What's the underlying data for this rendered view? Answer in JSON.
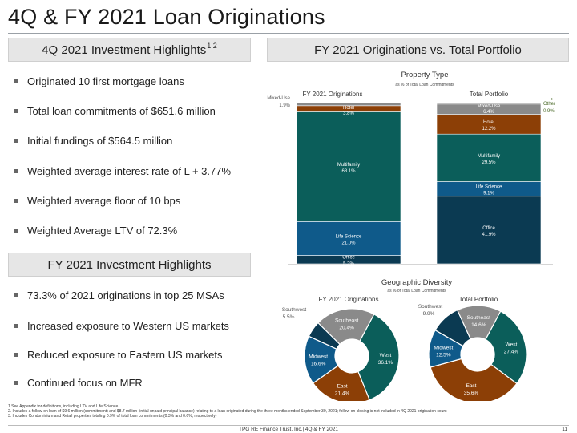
{
  "title": "4Q & FY 2021 Loan Originations",
  "left": {
    "hdr1": "4Q 2021 Investment Highlights",
    "hdr1_sup": "1,2",
    "bullets1": [
      "Originated 10 first mortgage loans",
      "Total loan commitments of $651.6 million",
      "Initial fundings of $564.5 million",
      "Weighted average interest rate of L + 3.77%",
      "Weighted average floor of 10 bps",
      "Weighted Average LTV of 72.3%"
    ],
    "hdr2": "FY 2021 Investment Highlights",
    "bullets2": [
      "73.3% of 2021 originations in top 25 MSAs",
      "Increased exposure to Western US markets",
      "Reduced exposure to Eastern US markets",
      "Continued focus on MFR"
    ]
  },
  "right": {
    "hdr": "FY 2021 Originations vs. Total Portfolio"
  },
  "colors": {
    "office": "#0b3a52",
    "life_science": "#0f5a8a",
    "multifamily": "#0b5e5a",
    "hotel": "#8c3f06",
    "mixed_use": "#8a8a8a",
    "west": "#0b5e5a",
    "east": "#8c3f06",
    "midwest": "#0f5a8a",
    "southwest": "#0b3a52",
    "southeast": "#8a8a8a",
    "other_label": "#4b6b2a"
  },
  "chart_data": [
    {
      "type": "bar",
      "title": "Property Type",
      "subtitle": "as % of Total Loan Commitments",
      "stacked": true,
      "normalized": true,
      "categories": [
        "FY 2021 Originations",
        "Total Portfolio"
      ],
      "series": [
        {
          "name": "Office",
          "values": [
            5.2,
            41.9
          ],
          "labels": [
            "5.2%",
            "41.9%"
          ]
        },
        {
          "name": "Life Science",
          "values": [
            21.0,
            9.1
          ],
          "labels": [
            "21.0%",
            "9.1%"
          ]
        },
        {
          "name": "Multifamily",
          "values": [
            68.1,
            29.5
          ],
          "labels": [
            "68.1%",
            "29.5%"
          ]
        },
        {
          "name": "Hotel",
          "values": [
            3.8,
            12.2
          ],
          "labels": [
            "3.8%",
            "12.2%"
          ]
        },
        {
          "name": "Mixed-Use",
          "values": [
            1.9,
            6.4
          ],
          "labels": [
            "1.9%",
            "6.4%"
          ]
        },
        {
          "name": "Other",
          "values": [
            0,
            0.9
          ],
          "labels": [
            "",
            "0.9%"
          ],
          "footnote": "3"
        }
      ]
    },
    {
      "type": "pie",
      "title": "Geographic Diversity",
      "subtitle": "as % of Total Loan Commitments",
      "donut": true,
      "charts": [
        {
          "label": "FY 2021 Originations",
          "slices": [
            {
              "name": "West",
              "value": 36.1,
              "label": "36.1%"
            },
            {
              "name": "East",
              "value": 21.4,
              "label": "21.4%"
            },
            {
              "name": "Midwest",
              "value": 16.6,
              "label": "16.6%"
            },
            {
              "name": "Southwest",
              "value": 5.5,
              "label": "5.5%"
            },
            {
              "name": "Southeast",
              "value": 20.4,
              "label": "20.4%"
            }
          ]
        },
        {
          "label": "Total Portfolio",
          "slices": [
            {
              "name": "West",
              "value": 27.4,
              "label": "27.4%"
            },
            {
              "name": "East",
              "value": 35.6,
              "label": "35.6%"
            },
            {
              "name": "Midwest",
              "value": 12.5,
              "label": "12.5%"
            },
            {
              "name": "Southwest",
              "value": 9.9,
              "label": "9.9%"
            },
            {
              "name": "Southeast",
              "value": 14.6,
              "label": "14.6%"
            }
          ]
        }
      ]
    }
  ],
  "footnotes": [
    "1.See Appendix for definitions, including LTV and Life Science",
    "2. Includes a follow-on loan of $9.6 million (commitment) and $8.7 million (initial unpaid principal balance) relating to a loan originated during the three months ended September 30, 2021; follow-on closing is not included in 4Q 2021 origination count",
    "3. Includes Condominium and Retail properties totaling 0.9% of total loan commitments (0.3% and 0.6%, respectively)"
  ],
  "footer": "TPG RE Finance Trust, Inc.| 4Q & FY 2021",
  "page_number": "11"
}
